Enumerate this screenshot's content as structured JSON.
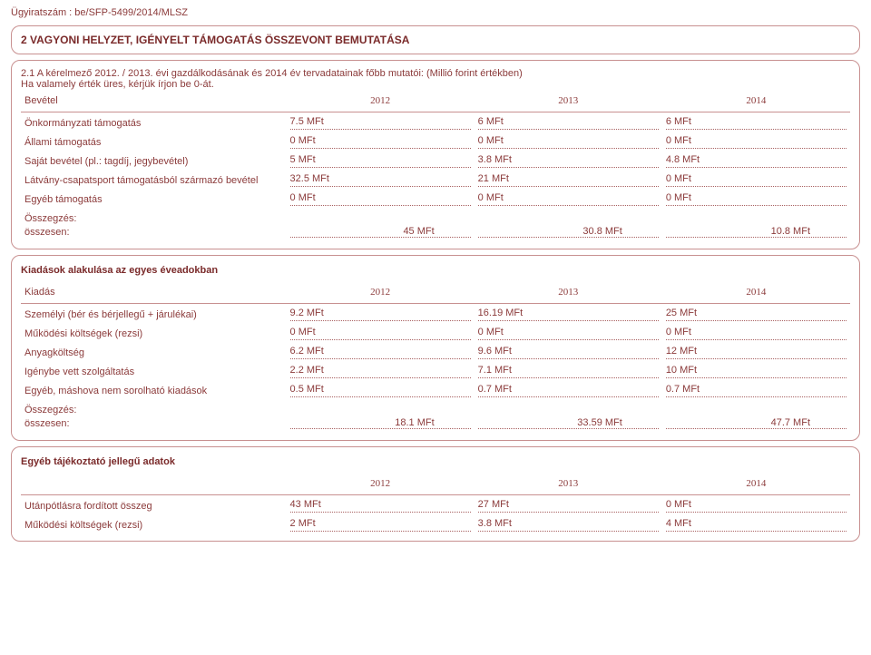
{
  "doc_number": "Ügyiratszám : be/SFP-5499/2014/MLSZ",
  "main_section": {
    "title": "2 VAGYONI HELYZET, IGÉNYELT TÁMOGATÁS ÖSSZEVONT BEMUTATÁSA",
    "sub": "2.1 A kérelmező 2012. / 2013. évi gazdálkodásának és 2014 év tervadatainak főbb mutatói: (Millió forint értékben)",
    "desc": "Ha valamely érték üres, kérjük írjon be 0-át."
  },
  "colors": {
    "border": "#c89090",
    "text": "#8b3a3a",
    "dotted": "#a86060",
    "bg": "#ffffff"
  },
  "years": [
    "2012",
    "2013",
    "2014"
  ],
  "revenue": {
    "header_label": "Bevétel",
    "rows": [
      {
        "label": "Önkormányzati támogatás",
        "vals": [
          "7.5 MFt",
          "6 MFt",
          "6 MFt"
        ]
      },
      {
        "label": "Állami támogatás",
        "vals": [
          "0 MFt",
          "0 MFt",
          "0 MFt"
        ]
      },
      {
        "label": "Saját bevétel (pl.: tagdíj, jegybevétel)",
        "vals": [
          "5 MFt",
          "3.8 MFt",
          "4.8 MFt"
        ]
      },
      {
        "label": "Látvány-csapatsport támogatásból származó bevétel",
        "vals": [
          "32.5 MFt",
          "21 MFt",
          "0 MFt"
        ]
      },
      {
        "label": "Egyéb támogatás",
        "vals": [
          "0 MFt",
          "0 MFt",
          "0 MFt"
        ]
      }
    ],
    "sum_label": "Összegzés:",
    "sum_row_label": "összesen:",
    "sum_vals": [
      "45  MFt",
      "30.8  MFt",
      "10.8  MFt"
    ]
  },
  "expenses": {
    "title": "Kiadások alakulása az egyes éveadokban",
    "header_label": "Kiadás",
    "rows": [
      {
        "label": "Személyi (bér és bérjellegű + járulékai)",
        "vals": [
          "9.2 MFt",
          "16.19 MFt",
          "25 MFt"
        ]
      },
      {
        "label": "Működési költségek (rezsi)",
        "vals": [
          "0 MFt",
          "0 MFt",
          "0 MFt"
        ]
      },
      {
        "label": "Anyagköltség",
        "vals": [
          "6.2 MFt",
          "9.6 MFt",
          "12 MFt"
        ]
      },
      {
        "label": "Igénybe vett szolgáltatás",
        "vals": [
          "2.2 MFt",
          "7.1 MFt",
          "10 MFt"
        ]
      },
      {
        "label": "Egyéb, máshova nem sorolható kiadások",
        "vals": [
          "0.5 MFt",
          "0.7 MFt",
          "0.7 MFt"
        ]
      }
    ],
    "sum_label": "Összegzés:",
    "sum_row_label": "összesen:",
    "sum_vals": [
      "18.1  MFt",
      "33.59  MFt",
      "47.7  MFt"
    ]
  },
  "other": {
    "title": "Egyéb tájékoztató jellegű adatok",
    "rows": [
      {
        "label": "Utánpótlásra fordított összeg",
        "vals": [
          "43 MFt",
          "27 MFt",
          "0 MFt"
        ]
      },
      {
        "label": "Működési költségek (rezsi)",
        "vals": [
          "2 MFt",
          "3.8 MFt",
          "4 MFt"
        ]
      }
    ]
  }
}
